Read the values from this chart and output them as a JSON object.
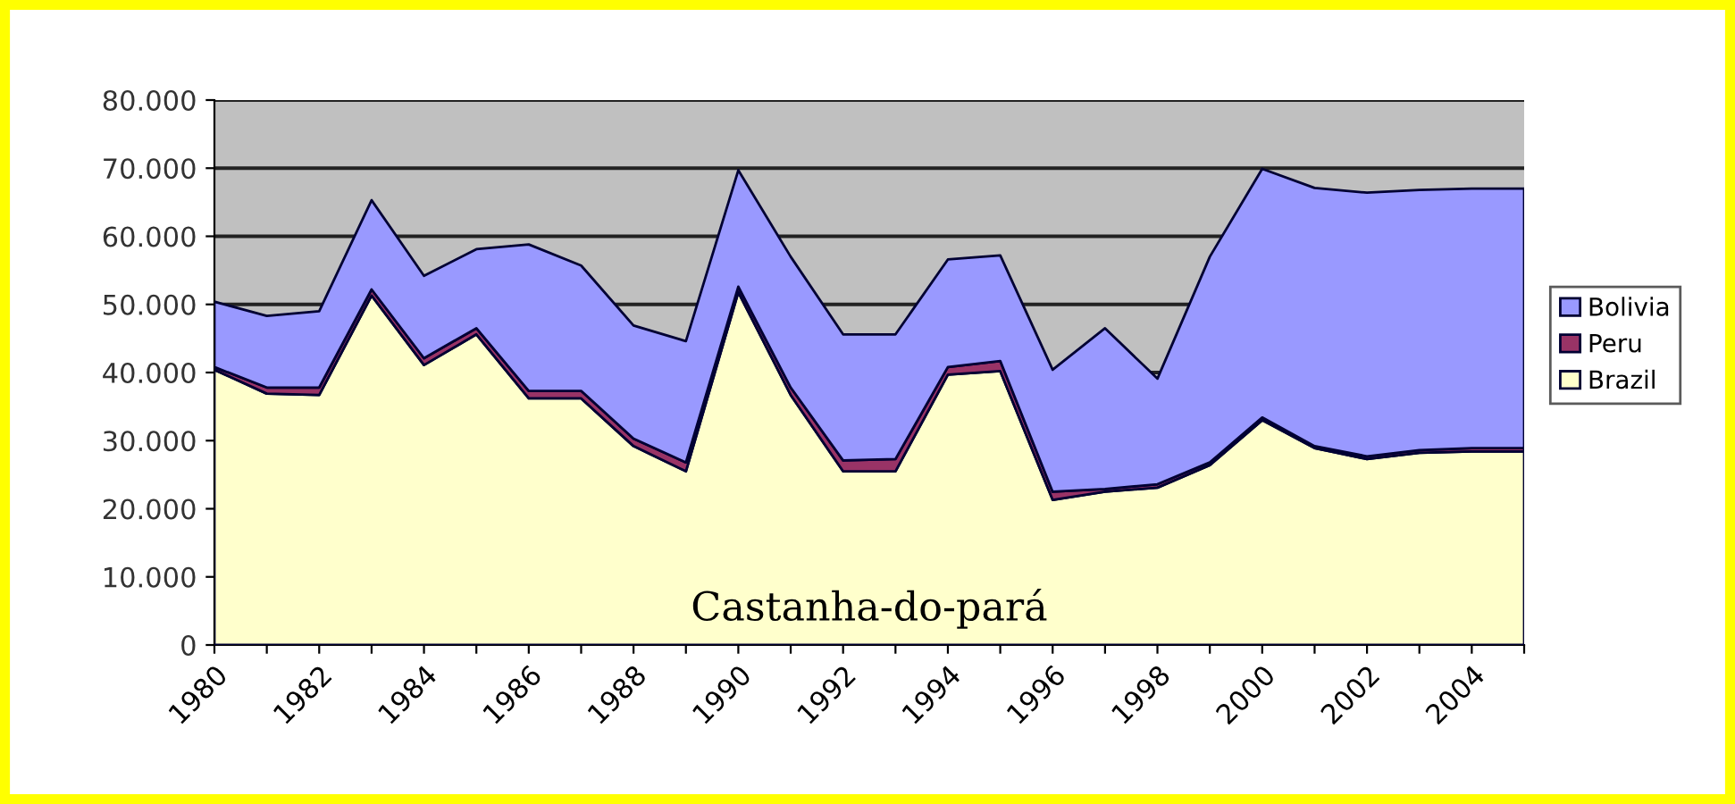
{
  "chart_data": {
    "type": "area",
    "stacked": true,
    "x": [
      1980,
      1981,
      1982,
      1983,
      1984,
      1985,
      1986,
      1987,
      1988,
      1989,
      1990,
      1991,
      1992,
      1993,
      1994,
      1995,
      1996,
      1997,
      1998,
      1999,
      2000,
      2001,
      2002,
      2003,
      2004,
      2005
    ],
    "series": [
      {
        "name": "Brazil",
        "color": "#ffffcc",
        "values": [
          40400,
          36900,
          36700,
          51300,
          41100,
          45600,
          36200,
          36200,
          29200,
          25500,
          51800,
          36700,
          25500,
          25500,
          39700,
          40200,
          21300,
          22500,
          23100,
          26400,
          33000,
          28900,
          27300,
          28200,
          28400,
          28400
        ]
      },
      {
        "name": "Peru",
        "color": "#993366",
        "values": [
          400,
          900,
          1100,
          900,
          1000,
          900,
          1100,
          1100,
          1100,
          1300,
          800,
          1100,
          1600,
          1800,
          1100,
          1500,
          1200,
          400,
          500,
          400,
          400,
          300,
          400,
          400,
          500,
          500
        ]
      },
      {
        "name": "Bolivia",
        "color": "#9999ff",
        "values": [
          9600,
          10500,
          11200,
          13100,
          12100,
          11600,
          21500,
          18400,
          16600,
          17800,
          17100,
          19200,
          18500,
          18300,
          15800,
          15500,
          17900,
          23600,
          15500,
          30200,
          36500,
          37900,
          38700,
          38200,
          38100,
          38100
        ]
      }
    ],
    "xlim": [
      1980,
      2005
    ],
    "xticks": [
      1980,
      {
        "value": 1981,
        "label": null
      },
      1982,
      {
        "value": 1983,
        "label": null
      },
      1984,
      {
        "value": 1985,
        "label": null
      },
      1986,
      {
        "value": 1987,
        "label": null
      },
      1988,
      {
        "value": 1989,
        "label": null
      },
      1990,
      {
        "value": 1991,
        "label": null
      },
      1992,
      {
        "value": 1993,
        "label": null
      },
      1994,
      {
        "value": 1995,
        "label": null
      },
      1996,
      {
        "value": 1997,
        "label": null
      },
      1998,
      {
        "value": 1999,
        "label": null
      },
      2000,
      {
        "value": 2001,
        "label": null
      },
      2002,
      {
        "value": 2003,
        "label": null
      },
      2004,
      {
        "value": 2005,
        "label": null
      }
    ],
    "ylim": [
      0,
      80000
    ],
    "yticks": [
      {
        "value": 0,
        "label": "0"
      },
      {
        "value": 10000,
        "label": "10.000"
      },
      {
        "value": 20000,
        "label": "20.000"
      },
      {
        "value": 30000,
        "label": "30.000"
      },
      {
        "value": 40000,
        "label": "40.000"
      },
      {
        "value": 50000,
        "label": "50.000"
      },
      {
        "value": 60000,
        "label": "60.000"
      },
      {
        "value": 70000,
        "label": "70.000"
      },
      {
        "value": 80000,
        "label": "80.000"
      }
    ],
    "grid": "y",
    "legend": "right",
    "annotations": [
      "Castanha-do-pará"
    ]
  }
}
